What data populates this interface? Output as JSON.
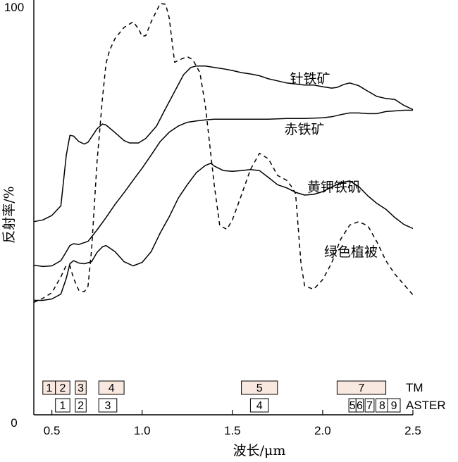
{
  "chart_data": {
    "type": "line",
    "xlabel": "波长/μm",
    "ylabel": "反射率/%",
    "xlim": [
      0.4,
      2.5
    ],
    "ylim": [
      0,
      100
    ],
    "x_ticks": [
      "0.5",
      "1.0",
      "1.5",
      "2.0",
      "2.5"
    ],
    "x_tick_values": [
      0.5,
      1.0,
      1.5,
      2.0,
      2.5
    ],
    "y_ticks": [
      "0",
      "100"
    ],
    "y_tick_values": [
      0,
      100
    ],
    "grid": false,
    "line_color": "#000000",
    "band_fill_tm": "#f8e8e0",
    "band_fill_aster": "#ffffff",
    "series": [
      {
        "name": "针铁矿",
        "style": "solid",
        "points": [
          [
            0.4,
            37.4
          ],
          [
            0.45,
            37.9
          ],
          [
            0.5,
            39.2
          ],
          [
            0.55,
            42
          ],
          [
            0.58,
            56.7
          ],
          [
            0.6,
            62.4
          ],
          [
            0.62,
            62.2
          ],
          [
            0.65,
            60.6
          ],
          [
            0.68,
            59.9
          ],
          [
            0.7,
            60.4
          ],
          [
            0.73,
            62.7
          ],
          [
            0.75,
            64.3
          ],
          [
            0.78,
            65.7
          ],
          [
            0.8,
            65.4
          ],
          [
            0.85,
            63.2
          ],
          [
            0.9,
            60.9
          ],
          [
            0.93,
            60.2
          ],
          [
            0.98,
            60.2
          ],
          [
            1.02,
            61.5
          ],
          [
            1.08,
            65.1
          ],
          [
            1.12,
            69.2
          ],
          [
            1.18,
            75.1
          ],
          [
            1.23,
            80
          ],
          [
            1.27,
            82.1
          ],
          [
            1.3,
            82.5
          ],
          [
            1.35,
            82.5
          ],
          [
            1.4,
            82.1
          ],
          [
            1.45,
            81.7
          ],
          [
            1.5,
            81.2
          ],
          [
            1.55,
            80.6
          ],
          [
            1.6,
            80.2
          ],
          [
            1.65,
            79.7
          ],
          [
            1.7,
            78.8
          ],
          [
            1.75,
            78.2
          ],
          [
            1.8,
            77.6
          ],
          [
            1.85,
            77.3
          ],
          [
            1.9,
            77
          ],
          [
            1.95,
            77
          ],
          [
            2.0,
            76.5
          ],
          [
            2.05,
            76.1
          ],
          [
            2.08,
            76.3
          ],
          [
            2.12,
            77.2
          ],
          [
            2.15,
            77.6
          ],
          [
            2.2,
            76.8
          ],
          [
            2.25,
            75.2
          ],
          [
            2.3,
            73.7
          ],
          [
            2.35,
            73.1
          ],
          [
            2.4,
            72.8
          ],
          [
            2.45,
            71.1
          ],
          [
            2.5,
            69.9
          ]
        ]
      },
      {
        "name": "赤铁矿",
        "style": "solid",
        "points": [
          [
            0.4,
            24.8
          ],
          [
            0.45,
            24.4
          ],
          [
            0.5,
            24.6
          ],
          [
            0.55,
            26.1
          ],
          [
            0.58,
            28.7
          ],
          [
            0.6,
            30.5
          ],
          [
            0.62,
            31
          ],
          [
            0.65,
            30.8
          ],
          [
            0.7,
            31.7
          ],
          [
            0.75,
            35
          ],
          [
            0.8,
            38.6
          ],
          [
            0.85,
            42.4
          ],
          [
            0.9,
            45.8
          ],
          [
            0.95,
            49.4
          ],
          [
            1.0,
            52.9
          ],
          [
            1.05,
            56.7
          ],
          [
            1.1,
            60.6
          ],
          [
            1.15,
            63.3
          ],
          [
            1.2,
            65.1
          ],
          [
            1.25,
            66.2
          ],
          [
            1.3,
            66.6
          ],
          [
            1.35,
            66.9
          ],
          [
            1.4,
            67.1
          ],
          [
            1.5,
            67.1
          ],
          [
            1.6,
            67.1
          ],
          [
            1.7,
            67.1
          ],
          [
            1.8,
            67.3
          ],
          [
            1.9,
            67.3
          ],
          [
            2.0,
            67.5
          ],
          [
            2.05,
            67.8
          ],
          [
            2.1,
            68.4
          ],
          [
            2.15,
            68.9
          ],
          [
            2.2,
            68.9
          ],
          [
            2.25,
            68.7
          ],
          [
            2.3,
            68.7
          ],
          [
            2.35,
            69.3
          ],
          [
            2.4,
            69.5
          ],
          [
            2.45,
            69.7
          ],
          [
            2.5,
            69.7
          ]
        ]
      },
      {
        "name": "黄钾铁矾",
        "style": "solid",
        "points": [
          [
            0.4,
            14.6
          ],
          [
            0.45,
            14.6
          ],
          [
            0.5,
            15
          ],
          [
            0.55,
            16.4
          ],
          [
            0.58,
            21
          ],
          [
            0.6,
            25.2
          ],
          [
            0.62,
            26.1
          ],
          [
            0.65,
            25.4
          ],
          [
            0.68,
            25.2
          ],
          [
            0.72,
            25.8
          ],
          [
            0.75,
            28.5
          ],
          [
            0.78,
            30.1
          ],
          [
            0.8,
            30.5
          ],
          [
            0.85,
            28.7
          ],
          [
            0.9,
            25.8
          ],
          [
            0.95,
            24.6
          ],
          [
            1.0,
            25.6
          ],
          [
            1.05,
            28.7
          ],
          [
            1.1,
            34.1
          ],
          [
            1.15,
            38.8
          ],
          [
            1.2,
            44.2
          ],
          [
            1.25,
            48.1
          ],
          [
            1.3,
            51.6
          ],
          [
            1.35,
            53.7
          ],
          [
            1.38,
            54.3
          ],
          [
            1.4,
            53.5
          ],
          [
            1.45,
            52.2
          ],
          [
            1.5,
            52
          ],
          [
            1.55,
            52.2
          ],
          [
            1.6,
            52.5
          ],
          [
            1.65,
            52.2
          ],
          [
            1.7,
            50.2
          ],
          [
            1.75,
            48.1
          ],
          [
            1.8,
            47.2
          ],
          [
            1.85,
            45.9
          ],
          [
            1.9,
            45.1
          ],
          [
            1.95,
            45.3
          ],
          [
            2.0,
            46.1
          ],
          [
            2.05,
            47.4
          ],
          [
            2.1,
            48.7
          ],
          [
            2.15,
            49.2
          ],
          [
            2.2,
            47.6
          ],
          [
            2.25,
            44.9
          ],
          [
            2.3,
            42.7
          ],
          [
            2.35,
            41
          ],
          [
            2.4,
            38.6
          ],
          [
            2.45,
            36.6
          ],
          [
            2.5,
            35.4
          ]
        ]
      },
      {
        "name": "绿色植被",
        "style": "dashed",
        "points": [
          [
            0.4,
            14
          ],
          [
            0.45,
            15.2
          ],
          [
            0.5,
            16.8
          ],
          [
            0.53,
            19.6
          ],
          [
            0.55,
            21.4
          ],
          [
            0.58,
            24.8
          ],
          [
            0.6,
            24.6
          ],
          [
            0.62,
            21
          ],
          [
            0.65,
            17.4
          ],
          [
            0.68,
            17.1
          ],
          [
            0.7,
            18.7
          ],
          [
            0.72,
            29.3
          ],
          [
            0.75,
            54.7
          ],
          [
            0.78,
            73.1
          ],
          [
            0.8,
            83.3
          ],
          [
            0.82,
            87.1
          ],
          [
            0.85,
            90.5
          ],
          [
            0.9,
            93.7
          ],
          [
            0.95,
            95.3
          ],
          [
            0.98,
            93.3
          ],
          [
            1.0,
            91.1
          ],
          [
            1.02,
            91.3
          ],
          [
            1.05,
            95.3
          ],
          [
            1.1,
            100.6
          ],
          [
            1.13,
            100.4
          ],
          [
            1.15,
            96.5
          ],
          [
            1.18,
            83.6
          ],
          [
            1.22,
            84.6
          ],
          [
            1.25,
            85.2
          ],
          [
            1.28,
            84.4
          ],
          [
            1.32,
            80.6
          ],
          [
            1.35,
            71.1
          ],
          [
            1.4,
            47.8
          ],
          [
            1.43,
            36.2
          ],
          [
            1.47,
            35.2
          ],
          [
            1.5,
            37.9
          ],
          [
            1.55,
            45.1
          ],
          [
            1.6,
            52.5
          ],
          [
            1.65,
            57.2
          ],
          [
            1.7,
            55.6
          ],
          [
            1.75,
            50.8
          ],
          [
            1.8,
            49.4
          ],
          [
            1.83,
            47.4
          ],
          [
            1.85,
            45.5
          ],
          [
            1.88,
            25.2
          ],
          [
            1.9,
            18.8
          ],
          [
            1.95,
            17.8
          ],
          [
            2.0,
            20.6
          ],
          [
            2.05,
            25.4
          ],
          [
            2.1,
            32.3
          ],
          [
            2.15,
            36.4
          ],
          [
            2.2,
            37.4
          ],
          [
            2.25,
            36.2
          ],
          [
            2.3,
            31.6
          ],
          [
            2.35,
            26.1
          ],
          [
            2.4,
            22.2
          ],
          [
            2.45,
            19.2
          ],
          [
            2.5,
            16.2
          ]
        ]
      }
    ],
    "series_labels": [
      "针铁矿",
      "赤铁矿",
      "黄钾铁矾",
      "绿色植被"
    ],
    "sensor_bands": [
      {
        "sensor": "TM",
        "bands": [
          {
            "label": "1",
            "range": [
              0.45,
              0.52
            ]
          },
          {
            "label": "2",
            "range": [
              0.52,
              0.6
            ]
          },
          {
            "label": "3",
            "range": [
              0.63,
              0.69
            ]
          },
          {
            "label": "4",
            "range": [
              0.76,
              0.9
            ]
          },
          {
            "label": "5",
            "range": [
              1.55,
              1.75
            ]
          },
          {
            "label": "7",
            "range": [
              2.08,
              2.35
            ]
          }
        ]
      },
      {
        "sensor": "ASTER",
        "bands": [
          {
            "label": "1",
            "range": [
              0.52,
              0.6
            ]
          },
          {
            "label": "2",
            "range": [
              0.63,
              0.69
            ]
          },
          {
            "label": "3",
            "range": [
              0.76,
              0.86
            ]
          },
          {
            "label": "4",
            "range": [
              1.6,
              1.7
            ]
          },
          {
            "label": "5",
            "range": [
              2.145,
              2.185
            ]
          },
          {
            "label": "6",
            "range": [
              2.185,
              2.225
            ]
          },
          {
            "label": "7",
            "range": [
              2.235,
              2.285
            ]
          },
          {
            "label": "8",
            "range": [
              2.295,
              2.365
            ]
          },
          {
            "label": "9",
            "range": [
              2.36,
              2.43
            ]
          }
        ]
      }
    ]
  }
}
